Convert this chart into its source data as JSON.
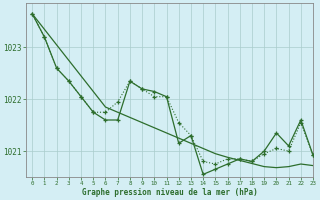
{
  "background_color": "#d4eef4",
  "grid_color": "#aacccc",
  "line_color": "#2d6e2d",
  "xlabel": "Graphe pression niveau de la mer (hPa)",
  "xlim": [
    -0.5,
    23
  ],
  "ylim": [
    1020.5,
    1023.85
  ],
  "yticks": [
    1021,
    1022,
    1023
  ],
  "xticks": [
    0,
    1,
    2,
    3,
    4,
    5,
    6,
    7,
    8,
    9,
    10,
    11,
    12,
    13,
    14,
    15,
    16,
    17,
    18,
    19,
    20,
    21,
    22,
    23
  ],
  "trend": [
    1023.65,
    1023.35,
    1023.05,
    1022.75,
    1022.45,
    1022.15,
    1021.85,
    1021.75,
    1021.65,
    1021.55,
    1021.45,
    1021.35,
    1021.25,
    1021.15,
    1021.05,
    1020.95,
    1020.88,
    1020.82,
    1020.76,
    1020.7,
    1020.68,
    1020.7,
    1020.75,
    1020.72
  ],
  "series_dot": [
    1023.65,
    1023.2,
    1022.6,
    1022.35,
    1022.05,
    1021.75,
    1021.75,
    1021.95,
    1022.35,
    1022.2,
    1022.05,
    1022.05,
    1021.55,
    1021.3,
    1020.8,
    1020.75,
    1020.85,
    1020.85,
    1020.8,
    1020.95,
    1021.05,
    1021.0,
    1021.55,
    1020.92
  ],
  "series_solid": [
    1023.65,
    1023.2,
    1022.6,
    1022.35,
    1022.05,
    1021.75,
    1021.6,
    1021.6,
    1022.35,
    1022.2,
    1022.15,
    1022.05,
    1021.15,
    1021.3,
    1020.55,
    1020.65,
    1020.75,
    1020.85,
    1020.8,
    1021.0,
    1021.35,
    1021.1,
    1021.6,
    1020.92
  ]
}
